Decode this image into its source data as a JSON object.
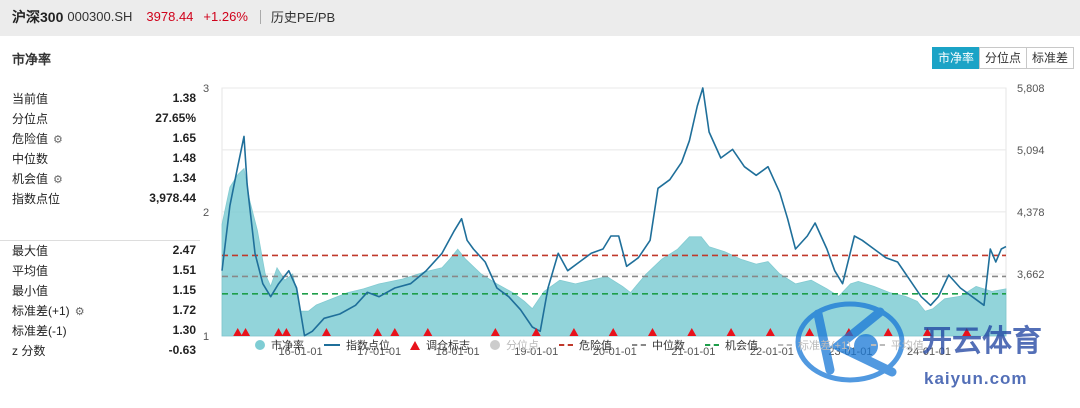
{
  "header": {
    "name": "沪深300",
    "code": "000300.SH",
    "price": "3978.44",
    "change": "+1.26%",
    "history": "历史PE/PB"
  },
  "panel_title": "市净率",
  "tabs": [
    {
      "label": "市净率",
      "active": true
    },
    {
      "label": "分位点",
      "active": false
    },
    {
      "label": "标准差",
      "active": false
    }
  ],
  "stats_top": [
    {
      "label": "当前值",
      "value": "1.38",
      "gear": false
    },
    {
      "label": "分位点",
      "value": "27.65%",
      "gear": false
    },
    {
      "label": "危险值",
      "value": "1.65",
      "gear": true
    },
    {
      "label": "中位数",
      "value": "1.48",
      "gear": false
    },
    {
      "label": "机会值",
      "value": "1.34",
      "gear": true
    },
    {
      "label": "指数点位",
      "value": "3,978.44",
      "gear": false
    }
  ],
  "stats_bottom": [
    {
      "label": "最大值",
      "value": "2.47",
      "gear": false
    },
    {
      "label": "平均值",
      "value": "1.51",
      "gear": false
    },
    {
      "label": "最小值",
      "value": "1.15",
      "gear": false
    },
    {
      "label": "标准差(+1)",
      "value": "1.72",
      "gear": true
    },
    {
      "label": "标准差(-1)",
      "value": "1.30",
      "gear": false
    },
    {
      "label": "z 分数",
      "value": "-0.63",
      "gear": false
    }
  ],
  "legend": [
    {
      "label": "市净率",
      "kind": "dot",
      "color": "#7fcdd4",
      "faded": false
    },
    {
      "label": "指数点位",
      "kind": "solid",
      "color": "#1f6f9a",
      "faded": false
    },
    {
      "label": "调仓标志",
      "kind": "tri",
      "color": "#e8121b",
      "faded": false
    },
    {
      "label": "分位点",
      "kind": "dot",
      "color": "#cccccc",
      "faded": true
    },
    {
      "label": "危险值",
      "kind": "dash",
      "color": "#c0392b",
      "faded": false
    },
    {
      "label": "中位数",
      "kind": "dash",
      "color": "#888888",
      "faded": false
    },
    {
      "label": "机会值",
      "kind": "dash",
      "color": "#1e9e4a",
      "faded": false
    },
    {
      "label": "标准差(+1)",
      "kind": "dash",
      "color": "#bbbbbb",
      "faded": true
    },
    {
      "label": "平均值",
      "kind": "dash",
      "color": "#bbbbbb",
      "faded": true
    }
  ],
  "watermark": {
    "brand": "开云体育",
    "url": "kaiyun.com"
  },
  "chart_data": {
    "type": "line",
    "x_ticks": [
      "16-01-01",
      "17-01-01",
      "18-01-01",
      "19-01-01",
      "20-01-01",
      "21-01-01",
      "22-01-01",
      "23-01-01",
      "24-01-01"
    ],
    "x_range": [
      2015.0,
      2024.98
    ],
    "y_left_ticks": [
      "1",
      "2",
      "3"
    ],
    "y_left_range": [
      1,
      3
    ],
    "y_right_ticks": [
      "3,662",
      "4,378",
      "5,094",
      "5,808"
    ],
    "y_right_range": [
      2946,
      5808
    ],
    "reference_lines": [
      {
        "name": "危险值",
        "value": 1.65,
        "color": "#c0392b"
      },
      {
        "name": "中位数",
        "value": 1.48,
        "color": "#888888"
      },
      {
        "name": "机会值",
        "value": 1.34,
        "color": "#1e9e4a"
      }
    ],
    "series": [
      {
        "name": "市净率",
        "color": "#7fcdd4",
        "points": [
          [
            2015.0,
            1.9
          ],
          [
            2015.1,
            2.2
          ],
          [
            2015.2,
            2.3
          ],
          [
            2015.28,
            2.35
          ],
          [
            2015.35,
            2.1
          ],
          [
            2015.45,
            1.85
          ],
          [
            2015.55,
            1.5
          ],
          [
            2015.62,
            1.4
          ],
          [
            2015.7,
            1.55
          ],
          [
            2015.8,
            1.45
          ],
          [
            2015.9,
            1.5
          ],
          [
            2016.0,
            1.2
          ],
          [
            2016.1,
            1.2
          ],
          [
            2016.2,
            1.25
          ],
          [
            2016.4,
            1.3
          ],
          [
            2016.6,
            1.35
          ],
          [
            2016.8,
            1.38
          ],
          [
            2017.0,
            1.42
          ],
          [
            2017.3,
            1.46
          ],
          [
            2017.6,
            1.52
          ],
          [
            2017.8,
            1.55
          ],
          [
            2017.9,
            1.62
          ],
          [
            2018.0,
            1.7
          ],
          [
            2018.1,
            1.62
          ],
          [
            2018.3,
            1.5
          ],
          [
            2018.5,
            1.42
          ],
          [
            2018.7,
            1.35
          ],
          [
            2018.85,
            1.28
          ],
          [
            2018.95,
            1.22
          ],
          [
            2019.1,
            1.36
          ],
          [
            2019.3,
            1.45
          ],
          [
            2019.5,
            1.42
          ],
          [
            2019.7,
            1.45
          ],
          [
            2019.9,
            1.48
          ],
          [
            2020.1,
            1.4
          ],
          [
            2020.2,
            1.35
          ],
          [
            2020.4,
            1.5
          ],
          [
            2020.6,
            1.62
          ],
          [
            2020.8,
            1.7
          ],
          [
            2020.95,
            1.8
          ],
          [
            2021.1,
            1.8
          ],
          [
            2021.2,
            1.72
          ],
          [
            2021.4,
            1.68
          ],
          [
            2021.6,
            1.62
          ],
          [
            2021.8,
            1.58
          ],
          [
            2021.95,
            1.6
          ],
          [
            2022.1,
            1.5
          ],
          [
            2022.3,
            1.42
          ],
          [
            2022.5,
            1.45
          ],
          [
            2022.7,
            1.38
          ],
          [
            2022.85,
            1.32
          ],
          [
            2023.0,
            1.42
          ],
          [
            2023.1,
            1.44
          ],
          [
            2023.3,
            1.4
          ],
          [
            2023.5,
            1.35
          ],
          [
            2023.7,
            1.32
          ],
          [
            2023.85,
            1.28
          ],
          [
            2023.95,
            1.2
          ],
          [
            2024.05,
            1.22
          ],
          [
            2024.2,
            1.3
          ],
          [
            2024.4,
            1.32
          ],
          [
            2024.6,
            1.4
          ],
          [
            2024.8,
            1.36
          ],
          [
            2024.98,
            1.38
          ]
        ]
      },
      {
        "name": "指数点位",
        "color": "#1f6f9a",
        "points": [
          [
            2015.0,
            3700
          ],
          [
            2015.1,
            4450
          ],
          [
            2015.2,
            4900
          ],
          [
            2015.28,
            5250
          ],
          [
            2015.32,
            4700
          ],
          [
            2015.42,
            3900
          ],
          [
            2015.52,
            3550
          ],
          [
            2015.62,
            3400
          ],
          [
            2015.72,
            3550
          ],
          [
            2015.85,
            3700
          ],
          [
            2015.95,
            3500
          ],
          [
            2016.05,
            2950
          ],
          [
            2016.15,
            3000
          ],
          [
            2016.3,
            3150
          ],
          [
            2016.5,
            3200
          ],
          [
            2016.7,
            3300
          ],
          [
            2016.85,
            3450
          ],
          [
            2017.0,
            3400
          ],
          [
            2017.2,
            3500
          ],
          [
            2017.4,
            3550
          ],
          [
            2017.6,
            3700
          ],
          [
            2017.8,
            3900
          ],
          [
            2017.95,
            4150
          ],
          [
            2018.05,
            4300
          ],
          [
            2018.12,
            4050
          ],
          [
            2018.2,
            3950
          ],
          [
            2018.35,
            3800
          ],
          [
            2018.5,
            3500
          ],
          [
            2018.65,
            3400
          ],
          [
            2018.8,
            3250
          ],
          [
            2018.95,
            3050
          ],
          [
            2019.05,
            3000
          ],
          [
            2019.15,
            3500
          ],
          [
            2019.28,
            3900
          ],
          [
            2019.4,
            3700
          ],
          [
            2019.55,
            3800
          ],
          [
            2019.7,
            3900
          ],
          [
            2019.85,
            3950
          ],
          [
            2019.95,
            4100
          ],
          [
            2020.05,
            4100
          ],
          [
            2020.15,
            3750
          ],
          [
            2020.3,
            3850
          ],
          [
            2020.45,
            4050
          ],
          [
            2020.55,
            4650
          ],
          [
            2020.7,
            4750
          ],
          [
            2020.85,
            4950
          ],
          [
            2020.95,
            5200
          ],
          [
            2021.05,
            5600
          ],
          [
            2021.12,
            5808
          ],
          [
            2021.2,
            5300
          ],
          [
            2021.35,
            5000
          ],
          [
            2021.5,
            5100
          ],
          [
            2021.65,
            4900
          ],
          [
            2021.8,
            4800
          ],
          [
            2021.95,
            4900
          ],
          [
            2022.1,
            4600
          ],
          [
            2022.2,
            4300
          ],
          [
            2022.3,
            3950
          ],
          [
            2022.45,
            4100
          ],
          [
            2022.55,
            4250
          ],
          [
            2022.7,
            3950
          ],
          [
            2022.8,
            3700
          ],
          [
            2022.9,
            3550
          ],
          [
            2023.05,
            4100
          ],
          [
            2023.15,
            4050
          ],
          [
            2023.3,
            3950
          ],
          [
            2023.45,
            3850
          ],
          [
            2023.6,
            3800
          ],
          [
            2023.75,
            3600
          ],
          [
            2023.9,
            3400
          ],
          [
            2024.02,
            3300
          ],
          [
            2024.12,
            3400
          ],
          [
            2024.25,
            3650
          ],
          [
            2024.4,
            3500
          ],
          [
            2024.55,
            3400
          ],
          [
            2024.7,
            3300
          ],
          [
            2024.78,
            3950
          ],
          [
            2024.85,
            3800
          ],
          [
            2024.92,
            3950
          ],
          [
            2024.98,
            3978
          ]
        ]
      }
    ],
    "rebalance_markers": [
      2015.2,
      2015.3,
      2015.72,
      2015.82,
      2016.33,
      2016.98,
      2017.2,
      2017.62,
      2018.48,
      2019.0,
      2019.48,
      2019.98,
      2020.48,
      2020.98,
      2021.48,
      2021.98,
      2022.48,
      2022.98,
      2023.48,
      2023.98,
      2024.48
    ]
  }
}
